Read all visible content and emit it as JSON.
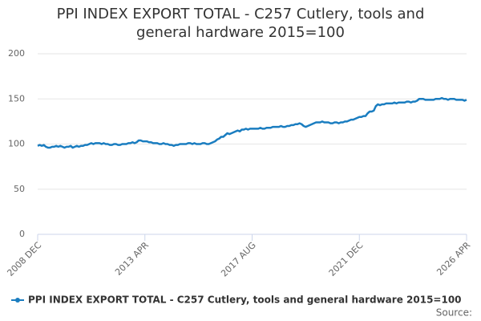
{
  "chart_data": {
    "type": "line",
    "title": "PPI INDEX EXPORT TOTAL - C257 Cutlery, tools and general hardware 2015=100",
    "source": "Source:",
    "categories": [
      "2008 DEC",
      null,
      null,
      null,
      null,
      null,
      null,
      null,
      null,
      null,
      null,
      null,
      null,
      null,
      null,
      null,
      null,
      null,
      null,
      null,
      null,
      null,
      null,
      null,
      null,
      null,
      null,
      null,
      null,
      null,
      null,
      null,
      null,
      null,
      null,
      null,
      null,
      null,
      null,
      null,
      null,
      null,
      null,
      null,
      null,
      null,
      null,
      null,
      null,
      null,
      null,
      null,
      "2013 APR",
      null,
      null,
      null,
      null,
      null,
      null,
      null,
      null,
      null,
      null,
      null,
      null,
      null,
      null,
      null,
      null,
      null,
      null,
      null,
      null,
      null,
      null,
      null,
      null,
      null,
      null,
      null,
      null,
      null,
      null,
      null,
      null,
      null,
      null,
      null,
      null,
      null,
      null,
      null,
      null,
      null,
      null,
      null,
      null,
      null,
      null,
      null,
      null,
      null,
      null,
      null,
      "2017 AUG",
      null,
      null,
      null,
      null,
      null,
      null,
      null,
      null,
      null,
      null,
      null,
      null,
      null,
      null,
      null,
      null,
      null,
      null,
      null,
      null,
      null,
      null,
      null,
      null,
      null,
      null,
      null,
      null,
      null,
      null,
      null,
      null,
      null,
      null,
      null,
      null,
      null,
      null,
      null,
      null,
      null,
      null,
      null,
      null,
      null,
      null,
      null,
      null,
      null,
      null,
      null,
      "2021 DEC",
      null,
      null,
      null,
      null,
      null,
      null,
      null,
      null,
      null,
      null,
      null,
      null,
      null,
      null,
      null,
      null,
      null,
      null,
      null,
      null,
      null,
      null,
      null,
      null,
      null,
      null,
      null,
      null,
      null,
      null,
      null,
      null,
      null,
      null,
      null,
      null,
      null,
      null,
      null,
      null,
      null,
      null,
      null,
      null,
      null,
      null,
      null,
      null,
      null,
      null,
      null,
      "2026 APR"
    ],
    "series": [
      {
        "name": "PPI INDEX EXPORT TOTAL - C257 Cutlery, tools and general hardware 2015=100",
        "color": "#1a7dc0",
        "values": [
          98,
          99,
          98,
          99,
          97,
          96,
          96,
          97,
          97,
          98,
          97,
          98,
          97,
          96,
          97,
          97,
          98,
          96,
          97,
          98,
          97,
          98,
          98,
          99,
          99,
          100,
          101,
          100,
          101,
          101,
          101,
          100,
          101,
          100,
          100,
          99,
          99,
          100,
          100,
          99,
          99,
          100,
          100,
          100,
          101,
          101,
          102,
          101,
          102,
          104,
          104,
          103,
          103,
          103,
          102,
          102,
          101,
          101,
          101,
          100,
          100,
          101,
          100,
          100,
          99,
          99,
          98,
          99,
          99,
          100,
          100,
          100,
          100,
          101,
          101,
          100,
          101,
          100,
          100,
          100,
          101,
          101,
          100,
          100,
          101,
          102,
          103,
          105,
          106,
          108,
          108,
          110,
          112,
          111,
          112,
          113,
          114,
          115,
          114,
          116,
          116,
          117,
          116,
          117,
          117,
          117,
          117,
          117,
          118,
          117,
          117,
          118,
          118,
          118,
          119,
          119,
          119,
          119,
          120,
          119,
          119,
          120,
          120,
          121,
          121,
          122,
          122,
          123,
          122,
          120,
          119,
          120,
          121,
          122,
          123,
          124,
          124,
          124,
          125,
          124,
          124,
          124,
          123,
          123,
          124,
          124,
          123,
          124,
          124,
          125,
          125,
          126,
          127,
          127,
          128,
          129,
          130,
          130,
          131,
          131,
          134,
          136,
          136,
          137,
          142,
          144,
          143,
          144,
          144,
          145,
          145,
          145,
          145,
          146,
          145,
          146,
          146,
          146,
          146,
          147,
          147,
          146,
          147,
          147,
          148,
          150,
          150,
          150,
          149,
          149,
          149,
          149,
          149,
          150,
          150,
          150,
          151,
          150,
          150,
          149,
          150,
          150,
          150,
          149,
          149,
          149,
          149,
          148,
          149
        ]
      }
    ],
    "ylim": [
      0,
      200
    ],
    "yticks": [
      0,
      50,
      100,
      150,
      200
    ],
    "grid": true
  }
}
